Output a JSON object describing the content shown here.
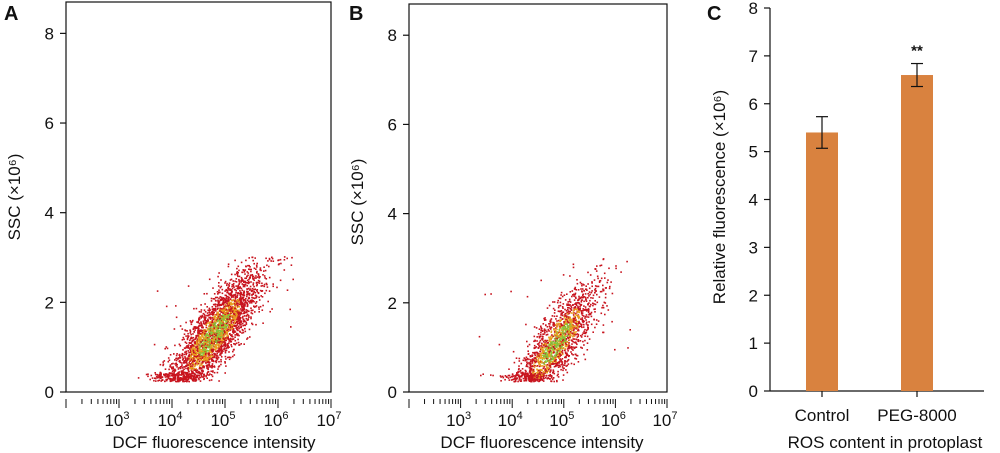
{
  "panels": {
    "A": {
      "letter": "A",
      "ylabel": "SSC (×10⁶)",
      "xlabel": "DCF fluorescence intensity"
    },
    "B": {
      "letter": "B",
      "ylabel": "SSC (×10⁶)",
      "xlabel": "DCF fluorescence intensity"
    },
    "C": {
      "letter": "C",
      "ylabel": "Relative fluorescence (×10⁶)",
      "xlabel": "ROS content in protoplast"
    }
  },
  "colors": {
    "bar": "#D9823F",
    "density_low": "#C8141E",
    "density_mid": "#E8A020",
    "density_high": "#86C23A"
  },
  "chart_data": [
    {
      "type": "scatter",
      "panel": "A",
      "title": "",
      "xlabel": "DCF fluorescence intensity",
      "ylabel": "SSC (×10⁶)",
      "x_scale": "log",
      "xlim": [
        100,
        10000000
      ],
      "ylim": [
        0,
        8.7
      ],
      "x_ticks": [
        {
          "value": 1000,
          "base": "10",
          "exp": "3"
        },
        {
          "value": 10000,
          "base": "10",
          "exp": "4"
        },
        {
          "value": 100000,
          "base": "10",
          "exp": "5"
        },
        {
          "value": 1000000,
          "base": "10",
          "exp": "6"
        },
        {
          "value": 10000000,
          "base": "10",
          "exp": "7"
        }
      ],
      "y_ticks": [
        0,
        2,
        4,
        6,
        8
      ],
      "density_center": {
        "x": 60000,
        "y": 1.3
      },
      "point_count_approx": 3000
    },
    {
      "type": "scatter",
      "panel": "B",
      "title": "",
      "xlabel": "DCF fluorescence intensity",
      "ylabel": "SSC (×10⁶)",
      "x_scale": "log",
      "xlim": [
        100,
        10000000
      ],
      "ylim": [
        0,
        8.7
      ],
      "x_ticks": [
        {
          "value": 1000,
          "base": "10",
          "exp": "3"
        },
        {
          "value": 10000,
          "base": "10",
          "exp": "4"
        },
        {
          "value": 100000,
          "base": "10",
          "exp": "5"
        },
        {
          "value": 1000000,
          "base": "10",
          "exp": "6"
        },
        {
          "value": 10000000,
          "base": "10",
          "exp": "7"
        }
      ],
      "y_ticks": [
        0,
        2,
        4,
        6,
        8
      ],
      "density_center": {
        "x": 70000,
        "y": 1.1
      },
      "point_count_approx": 1800
    },
    {
      "type": "bar",
      "panel": "C",
      "title": "",
      "xlabel": "ROS content in protoplast",
      "ylabel": "Relative fluorescence (×10⁶)",
      "categories": [
        "Control",
        "PEG-8000"
      ],
      "values": [
        5.4,
        6.6
      ],
      "errors": [
        0.33,
        0.24
      ],
      "annotations": [
        "",
        "**"
      ],
      "ylim": [
        0,
        8
      ],
      "y_ticks": [
        0,
        1,
        2,
        3,
        4,
        5,
        6,
        7,
        8
      ]
    }
  ]
}
